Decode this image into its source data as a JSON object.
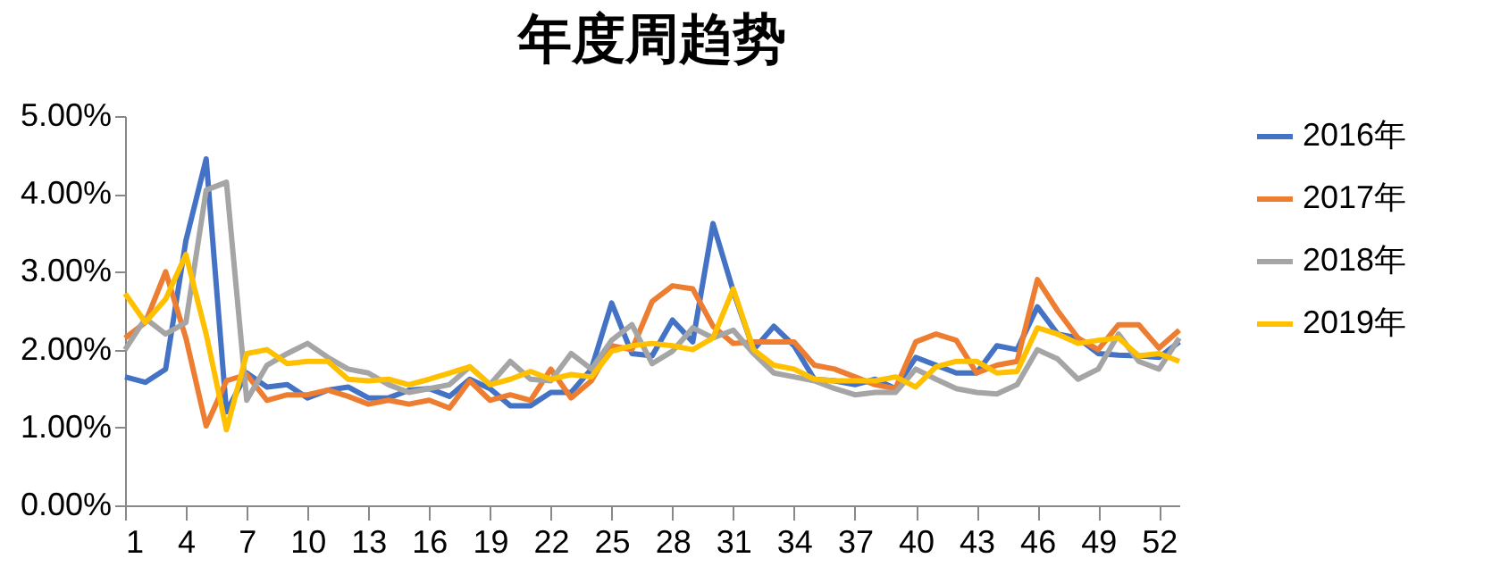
{
  "chart_data": {
    "type": "line",
    "title": "年度周趋势",
    "x": [
      1,
      2,
      3,
      4,
      5,
      6,
      7,
      8,
      9,
      10,
      11,
      12,
      13,
      14,
      15,
      16,
      17,
      18,
      19,
      20,
      21,
      22,
      23,
      24,
      25,
      26,
      27,
      28,
      29,
      30,
      31,
      32,
      33,
      34,
      35,
      36,
      37,
      38,
      39,
      40,
      41,
      42,
      43,
      44,
      45,
      46,
      47,
      48,
      49,
      50,
      51,
      52,
      53
    ],
    "xlim": [
      1,
      53
    ],
    "xticks": [
      1,
      4,
      7,
      10,
      13,
      16,
      19,
      22,
      25,
      28,
      31,
      34,
      37,
      40,
      43,
      46,
      49,
      52
    ],
    "ylim": [
      0,
      5
    ],
    "yticks": [
      {
        "value": 0,
        "label": "0.00%"
      },
      {
        "value": 1,
        "label": "1.00%"
      },
      {
        "value": 2,
        "label": "2.00%"
      },
      {
        "value": 3,
        "label": "3.00%"
      },
      {
        "value": 4,
        "label": "4.00%"
      },
      {
        "value": 5,
        "label": "5.00%"
      }
    ],
    "grid": false,
    "legend": "right",
    "marker": "none",
    "series": [
      {
        "name": "2016年",
        "color": "#4472c4",
        "values": [
          1.65,
          1.58,
          1.75,
          3.4,
          4.45,
          1.2,
          1.7,
          1.52,
          1.55,
          1.38,
          1.48,
          1.52,
          1.38,
          1.38,
          1.48,
          1.5,
          1.4,
          1.62,
          1.5,
          1.28,
          1.28,
          1.45,
          1.45,
          1.75,
          2.6,
          1.95,
          1.92,
          2.38,
          2.1,
          3.62,
          2.75,
          2.0,
          2.3,
          2.05,
          1.62,
          1.6,
          1.55,
          1.62,
          1.5,
          1.9,
          1.8,
          1.7,
          1.7,
          2.05,
          2.0,
          2.55,
          2.2,
          2.15,
          1.95,
          1.93,
          1.92,
          1.9,
          2.1
        ]
      },
      {
        "name": "2017年",
        "color": "#ed7d31",
        "values": [
          2.15,
          2.35,
          3.0,
          2.15,
          1.02,
          1.6,
          1.68,
          1.35,
          1.42,
          1.42,
          1.48,
          1.4,
          1.3,
          1.35,
          1.3,
          1.35,
          1.25,
          1.6,
          1.35,
          1.42,
          1.35,
          1.75,
          1.38,
          1.6,
          2.05,
          2.0,
          2.62,
          2.82,
          2.78,
          2.3,
          2.08,
          2.1,
          2.1,
          2.1,
          1.8,
          1.75,
          1.65,
          1.55,
          1.5,
          2.1,
          2.2,
          2.12,
          1.7,
          1.8,
          1.85,
          2.9,
          2.5,
          2.15,
          2.0,
          2.32,
          2.32,
          2.02,
          2.25
        ]
      },
      {
        "name": "2018年",
        "color": "#a5a5a5",
        "values": [
          2.0,
          2.4,
          2.2,
          2.35,
          4.05,
          4.15,
          1.35,
          1.8,
          1.95,
          2.08,
          1.9,
          1.75,
          1.7,
          1.55,
          1.45,
          1.5,
          1.55,
          1.78,
          1.55,
          1.85,
          1.62,
          1.6,
          1.95,
          1.75,
          2.12,
          2.32,
          1.82,
          1.98,
          2.28,
          2.15,
          2.25,
          1.95,
          1.7,
          1.65,
          1.6,
          1.5,
          1.42,
          1.45,
          1.45,
          1.75,
          1.62,
          1.5,
          1.45,
          1.43,
          1.55,
          2.0,
          1.88,
          1.62,
          1.75,
          2.2,
          1.85,
          1.75,
          2.15
        ]
      },
      {
        "name": "2019年",
        "color": "#ffc000",
        "values": [
          2.72,
          2.35,
          2.65,
          3.22,
          2.2,
          0.97,
          1.95,
          2.0,
          1.82,
          1.85,
          1.85,
          1.62,
          1.6,
          1.62,
          1.55,
          1.62,
          1.7,
          1.78,
          1.55,
          1.62,
          1.72,
          1.62,
          1.68,
          1.65,
          1.98,
          2.05,
          2.08,
          2.05,
          2.0,
          2.15,
          2.78,
          2.0,
          1.8,
          1.75,
          1.62,
          1.6,
          1.6,
          1.6,
          1.65,
          1.52,
          1.78,
          1.85,
          1.85,
          1.7,
          1.72,
          2.28,
          2.2,
          2.08,
          2.12,
          2.15,
          1.92,
          1.95,
          1.85
        ]
      }
    ]
  }
}
